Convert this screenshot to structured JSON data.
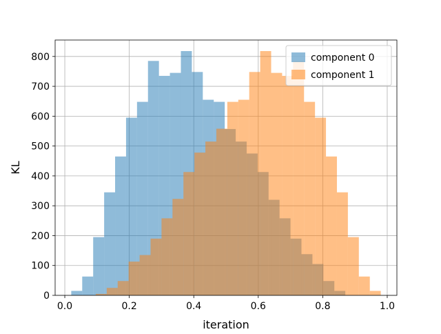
{
  "chart_data": {
    "type": "bar",
    "subtype": "overlaid histogram",
    "xlabel": "iteration",
    "ylabel": "KL",
    "xlim": [
      -0.03,
      1.03
    ],
    "ylim": [
      0,
      855
    ],
    "xticks": [
      0.0,
      0.2,
      0.4,
      0.6,
      0.8,
      1.0
    ],
    "xtick_labels": [
      "0.0",
      "0.2",
      "0.4",
      "0.6",
      "0.8",
      "1.0"
    ],
    "yticks": [
      0,
      100,
      200,
      300,
      400,
      500,
      600,
      700,
      800
    ],
    "ytick_labels": [
      "0",
      "100",
      "200",
      "300",
      "400",
      "500",
      "600",
      "700",
      "800"
    ],
    "grid": true,
    "legend_position": "top-right",
    "series": [
      {
        "name": "component 0",
        "color": "#1f77b4",
        "opacity": 0.5,
        "bin_edges": [
          0.02,
          0.054,
          0.088,
          0.122,
          0.156,
          0.19,
          0.224,
          0.258,
          0.292,
          0.326,
          0.36,
          0.394,
          0.428,
          0.462,
          0.496,
          0.53,
          0.564,
          0.598,
          0.632,
          0.666,
          0.7,
          0.734,
          0.768,
          0.802,
          0.836,
          0.87,
          0.904
        ],
        "values": [
          15,
          63,
          195,
          345,
          465,
          595,
          648,
          785,
          735,
          745,
          818,
          748,
          655,
          648,
          557,
          515,
          475,
          413,
          320,
          258,
          190,
          138,
          105,
          48,
          15,
          0
        ]
      },
      {
        "name": "component 1",
        "color": "#ff7f0e",
        "opacity": 0.5,
        "bin_edges": [
          0.096,
          0.13,
          0.164,
          0.198,
          0.232,
          0.266,
          0.3,
          0.334,
          0.368,
          0.402,
          0.436,
          0.47,
          0.504,
          0.538,
          0.572,
          0.606,
          0.64,
          0.674,
          0.708,
          0.742,
          0.776,
          0.81,
          0.844,
          0.878,
          0.912,
          0.946,
          0.98
        ],
        "values": [
          5,
          25,
          48,
          113,
          135,
          190,
          258,
          323,
          413,
          478,
          515,
          558,
          648,
          655,
          748,
          818,
          745,
          735,
          785,
          648,
          595,
          465,
          345,
          195,
          63,
          15
        ]
      }
    ]
  }
}
